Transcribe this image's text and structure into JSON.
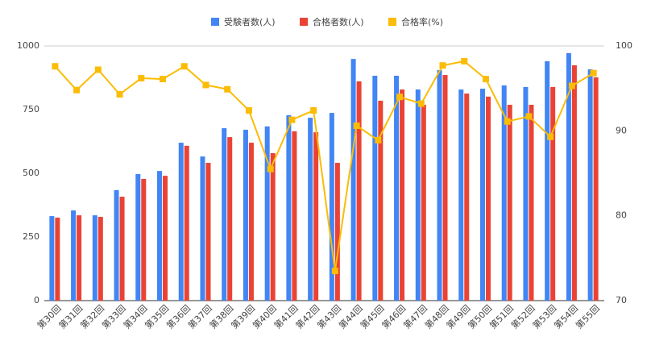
{
  "chart_data": {
    "type": "combo",
    "categories": [
      "第30回",
      "第31回",
      "第32回",
      "第33回",
      "第34回",
      "第35回",
      "第36回",
      "第37回",
      "第38回",
      "第39回",
      "第40回",
      "第41回",
      "第42回",
      "第43回",
      "第44回",
      "第45回",
      "第46回",
      "第47回",
      "第48回",
      "第49回",
      "第50回",
      "第51回",
      "第52回",
      "第53回",
      "第54回",
      "第55回"
    ],
    "series": [
      {
        "name": "受験者数(人)",
        "type": "bar",
        "color": "#4285f4",
        "axis": "y",
        "values": [
          332,
          354,
          335,
          434,
          497,
          509,
          620,
          566,
          677,
          671,
          684,
          728,
          718,
          737,
          949,
          883,
          883,
          829,
          905,
          829,
          832,
          845,
          839,
          940,
          972,
          908
        ]
      },
      {
        "name": "合格者数(人)",
        "type": "bar",
        "color": "#ea4335",
        "axis": "y",
        "values": [
          326,
          335,
          329,
          408,
          478,
          490,
          608,
          541,
          642,
          620,
          579,
          665,
          661,
          541,
          861,
          785,
          829,
          769,
          886,
          813,
          801,
          769,
          769,
          839,
          924,
          877
        ]
      },
      {
        "name": "合格率(%)",
        "type": "line",
        "color": "#fbbc04",
        "axis": "y2",
        "values": [
          97.6,
          94.8,
          97.2,
          94.3,
          96.2,
          96.1,
          97.6,
          95.4,
          94.9,
          92.4,
          85.5,
          91.3,
          92.4,
          73.5,
          90.6,
          88.9,
          94.0,
          93.2,
          97.7,
          98.2,
          96.1,
          91.1,
          91.7,
          89.3,
          95.3,
          96.8
        ]
      }
    ],
    "ylim": [
      0,
      1000
    ],
    "yticks": [
      0,
      250,
      500,
      750,
      1000
    ],
    "y2lim": [
      70,
      100
    ],
    "y2ticks": [
      70,
      80,
      90,
      100
    ],
    "legend": "top"
  }
}
